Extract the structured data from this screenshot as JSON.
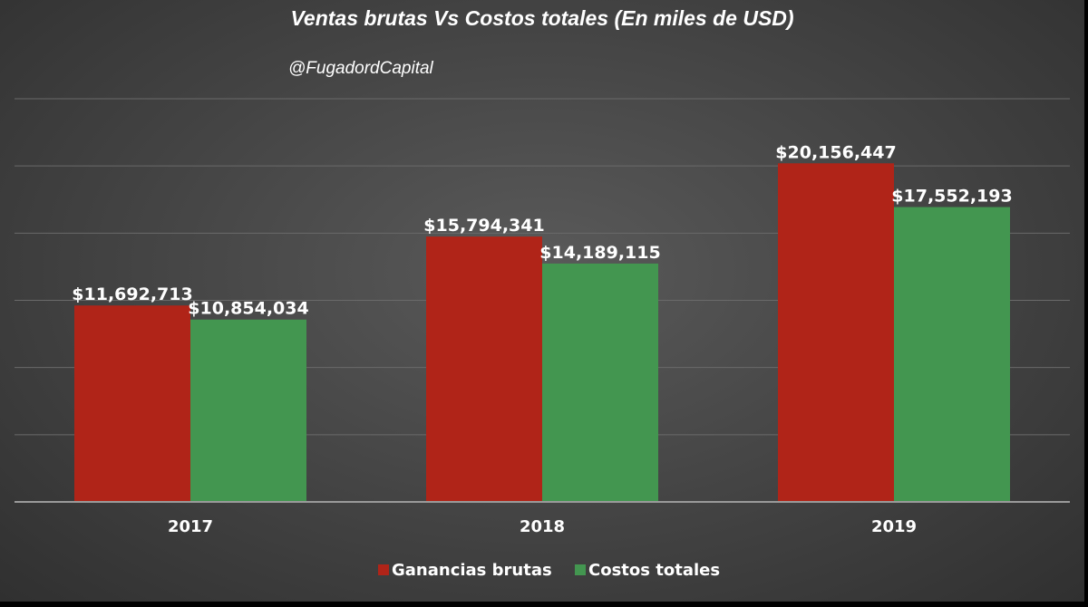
{
  "chart_data": {
    "type": "bar",
    "title": "Ventas brutas Vs Costos totales (En miles de USD)",
    "subtitle": "@FugadordCapital",
    "categories": [
      "2017",
      "2018",
      "2019"
    ],
    "series": [
      {
        "name": "Ganancias brutas",
        "color": "#b02418",
        "values": [
          11692713,
          15794341,
          20156447
        ],
        "labels": [
          "$11,692,713",
          "$15,794,341",
          "$20,156,447"
        ]
      },
      {
        "name": "Costos totales",
        "color": "#439650",
        "values": [
          10854034,
          14189115,
          17552193
        ],
        "labels": [
          "$10,854,034",
          "$14,189,115",
          "$17,552,193"
        ]
      }
    ],
    "ylim": [
      0,
      24000000
    ],
    "gridlines": true,
    "legend_position": "bottom",
    "y_axis_labels_shown": false,
    "background": "#474747"
  }
}
